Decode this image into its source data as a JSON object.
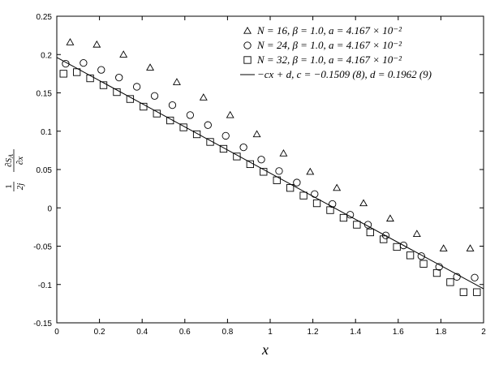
{
  "chart_data": {
    "type": "scatter",
    "xlabel": "x",
    "ylabel": "1/2j ∂S_A/∂x",
    "xlim": [
      0,
      2
    ],
    "ylim": [
      -0.15,
      0.25
    ],
    "xticks": [
      "0",
      "0.2",
      "0.4",
      "0.6",
      "0.8",
      "1",
      "1.2",
      "1.4",
      "1.6",
      "1.8",
      "2"
    ],
    "yticks": [
      "-0.15",
      "-0.1",
      "-0.05",
      "0",
      "0.05",
      "0.1",
      "0.15",
      "0.2",
      "0.25"
    ],
    "grid": false,
    "legend_position": "top-right",
    "series": [
      {
        "name": "N = 16,  β = 1.0,  a = 4.167 × 10⁻²",
        "marker": "triangle",
        "x": [
          0.0625,
          0.1875,
          0.3125,
          0.4375,
          0.5625,
          0.6875,
          0.8125,
          0.9375,
          1.0625,
          1.1875,
          1.3125,
          1.4375,
          1.5625,
          1.6875,
          1.8125,
          1.9375
        ],
        "y": [
          0.216,
          0.213,
          0.2,
          0.183,
          0.164,
          0.144,
          0.121,
          0.096,
          0.071,
          0.047,
          0.026,
          0.006,
          -0.014,
          -0.034,
          -0.053,
          -0.053
        ]
      },
      {
        "name": "N = 24,  β = 1.0,  a = 4.167 × 10⁻²",
        "marker": "circle",
        "x": [
          0.0417,
          0.125,
          0.2083,
          0.2917,
          0.375,
          0.4583,
          0.5417,
          0.625,
          0.7083,
          0.7917,
          0.875,
          0.9583,
          1.0417,
          1.125,
          1.2083,
          1.2917,
          1.375,
          1.4583,
          1.5417,
          1.625,
          1.7083,
          1.7917,
          1.875,
          1.9583
        ],
        "y": [
          0.188,
          0.189,
          0.18,
          0.17,
          0.158,
          0.146,
          0.134,
          0.121,
          0.108,
          0.094,
          0.079,
          0.063,
          0.048,
          0.033,
          0.018,
          0.005,
          -0.009,
          -0.022,
          -0.036,
          -0.049,
          -0.063,
          -0.077,
          -0.09,
          -0.091
        ]
      },
      {
        "name": "N = 32,  β = 1.0,  a = 4.167 × 10⁻²",
        "marker": "square",
        "x": [
          0.03125,
          0.09375,
          0.15625,
          0.21875,
          0.28125,
          0.34375,
          0.40625,
          0.46875,
          0.53125,
          0.59375,
          0.65625,
          0.71875,
          0.78125,
          0.84375,
          0.90625,
          0.96875,
          1.03125,
          1.09375,
          1.15625,
          1.21875,
          1.28125,
          1.34375,
          1.40625,
          1.46875,
          1.53125,
          1.59375,
          1.65625,
          1.71875,
          1.78125,
          1.84375,
          1.90625,
          1.96875
        ],
        "y": [
          0.175,
          0.177,
          0.169,
          0.16,
          0.151,
          0.142,
          0.132,
          0.123,
          0.114,
          0.105,
          0.096,
          0.086,
          0.077,
          0.067,
          0.057,
          0.047,
          0.036,
          0.026,
          0.016,
          0.006,
          -0.003,
          -0.013,
          -0.022,
          -0.032,
          -0.041,
          -0.051,
          -0.062,
          -0.073,
          -0.085,
          -0.097,
          -0.11,
          -0.11
        ]
      },
      {
        "name": "−cx + d,  c = −0.1509 (8),  d = 0.1962 (9)",
        "marker": "line",
        "slope": -0.1509,
        "intercept": 0.1962
      }
    ]
  }
}
